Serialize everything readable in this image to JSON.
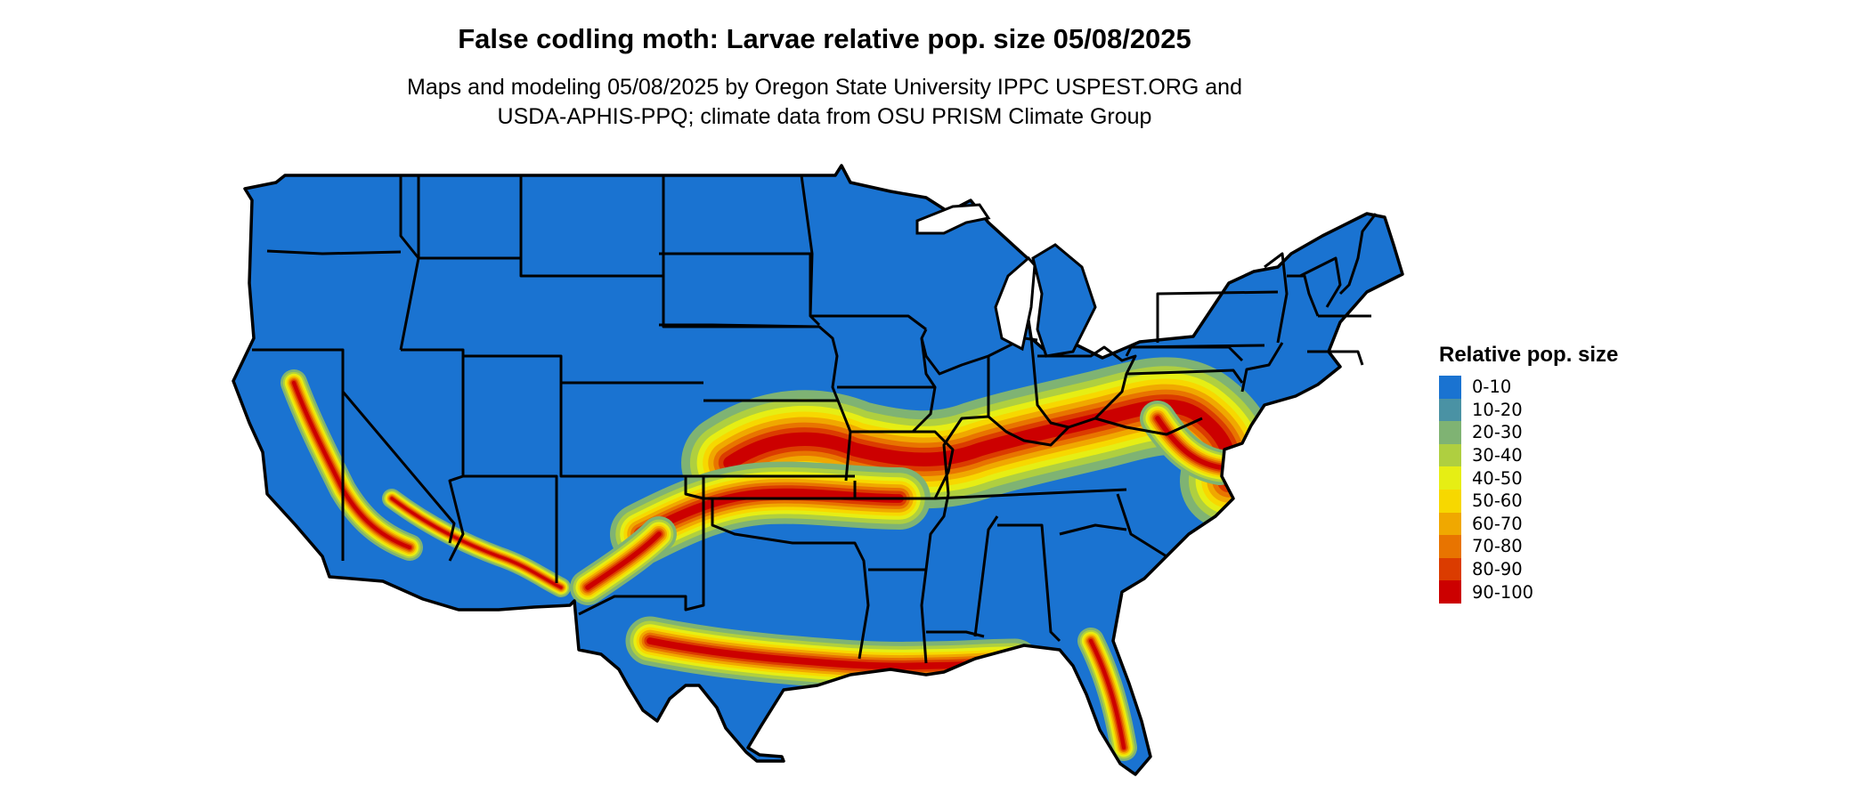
{
  "map": {
    "title": "False codling moth: Larvae relative pop. size 05/08/2025",
    "subtitle_line1": "Maps and modeling 05/08/2025 by Oregon State University IPPC USPEST.ORG and",
    "subtitle_line2": "USDA-APHIS-PPQ; climate data from OSU PRISM Climate Group",
    "region": "Contiguous United States"
  },
  "legend": {
    "title": "Relative pop. size",
    "items": [
      {
        "label": "0-10",
        "color": "#1a73d1"
      },
      {
        "label": "10-20",
        "color": "#4a92a4"
      },
      {
        "label": "20-30",
        "color": "#7fb373"
      },
      {
        "label": "30-40",
        "color": "#afcf40"
      },
      {
        "label": "40-50",
        "color": "#e6ee14"
      },
      {
        "label": "50-60",
        "color": "#f7d800"
      },
      {
        "label": "60-70",
        "color": "#f0a800"
      },
      {
        "label": "70-80",
        "color": "#e87400"
      },
      {
        "label": "80-90",
        "color": "#db3c00"
      },
      {
        "label": "90-100",
        "color": "#cc0000"
      }
    ]
  },
  "colors": {
    "base": "#1a73d1",
    "border": "#000000"
  }
}
